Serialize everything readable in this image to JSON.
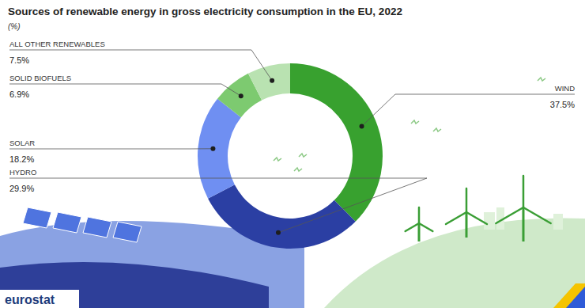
{
  "chart_data": {
    "type": "pie",
    "title": "Sources of renewable energy in gross electricity consumption in the EU, 2022",
    "subtitle": "(%)",
    "categories": [
      "WIND",
      "HYDRO",
      "SOLAR",
      "SOLID BIOFUELS",
      "ALL OTHER RENEWABLES"
    ],
    "values": [
      37.5,
      29.9,
      18.2,
      6.9,
      7.5
    ],
    "value_labels": [
      "37.5%",
      "29.9%",
      "18.2%",
      "6.9%",
      "7.5%"
    ],
    "colors": [
      "#38a12f",
      "#2b3fa3",
      "#6f8ff2",
      "#7dca70",
      "#b9e2b1"
    ],
    "data_labels": true,
    "source": "eurostat"
  }
}
